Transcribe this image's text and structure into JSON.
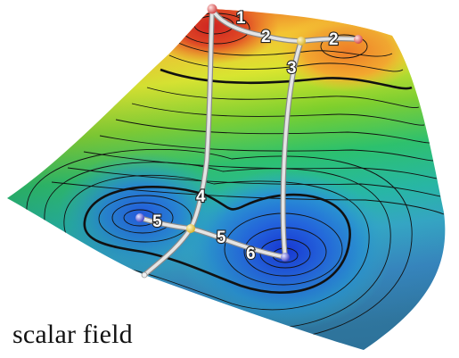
{
  "caption": "scalar field",
  "labels": [
    "1",
    "2",
    "2",
    "3",
    "4",
    "5",
    "5",
    "6"
  ],
  "colors": {
    "maximum_node": "#e86a6a",
    "saddle_node": "#f1d35a",
    "minimum_node": "#6a6ae6",
    "arc": "#d6d6d6",
    "contour": "#111111",
    "surface_high": "#d81f1f",
    "surface_mid": "#f2e51a",
    "surface_low": "#1a5fe0"
  }
}
